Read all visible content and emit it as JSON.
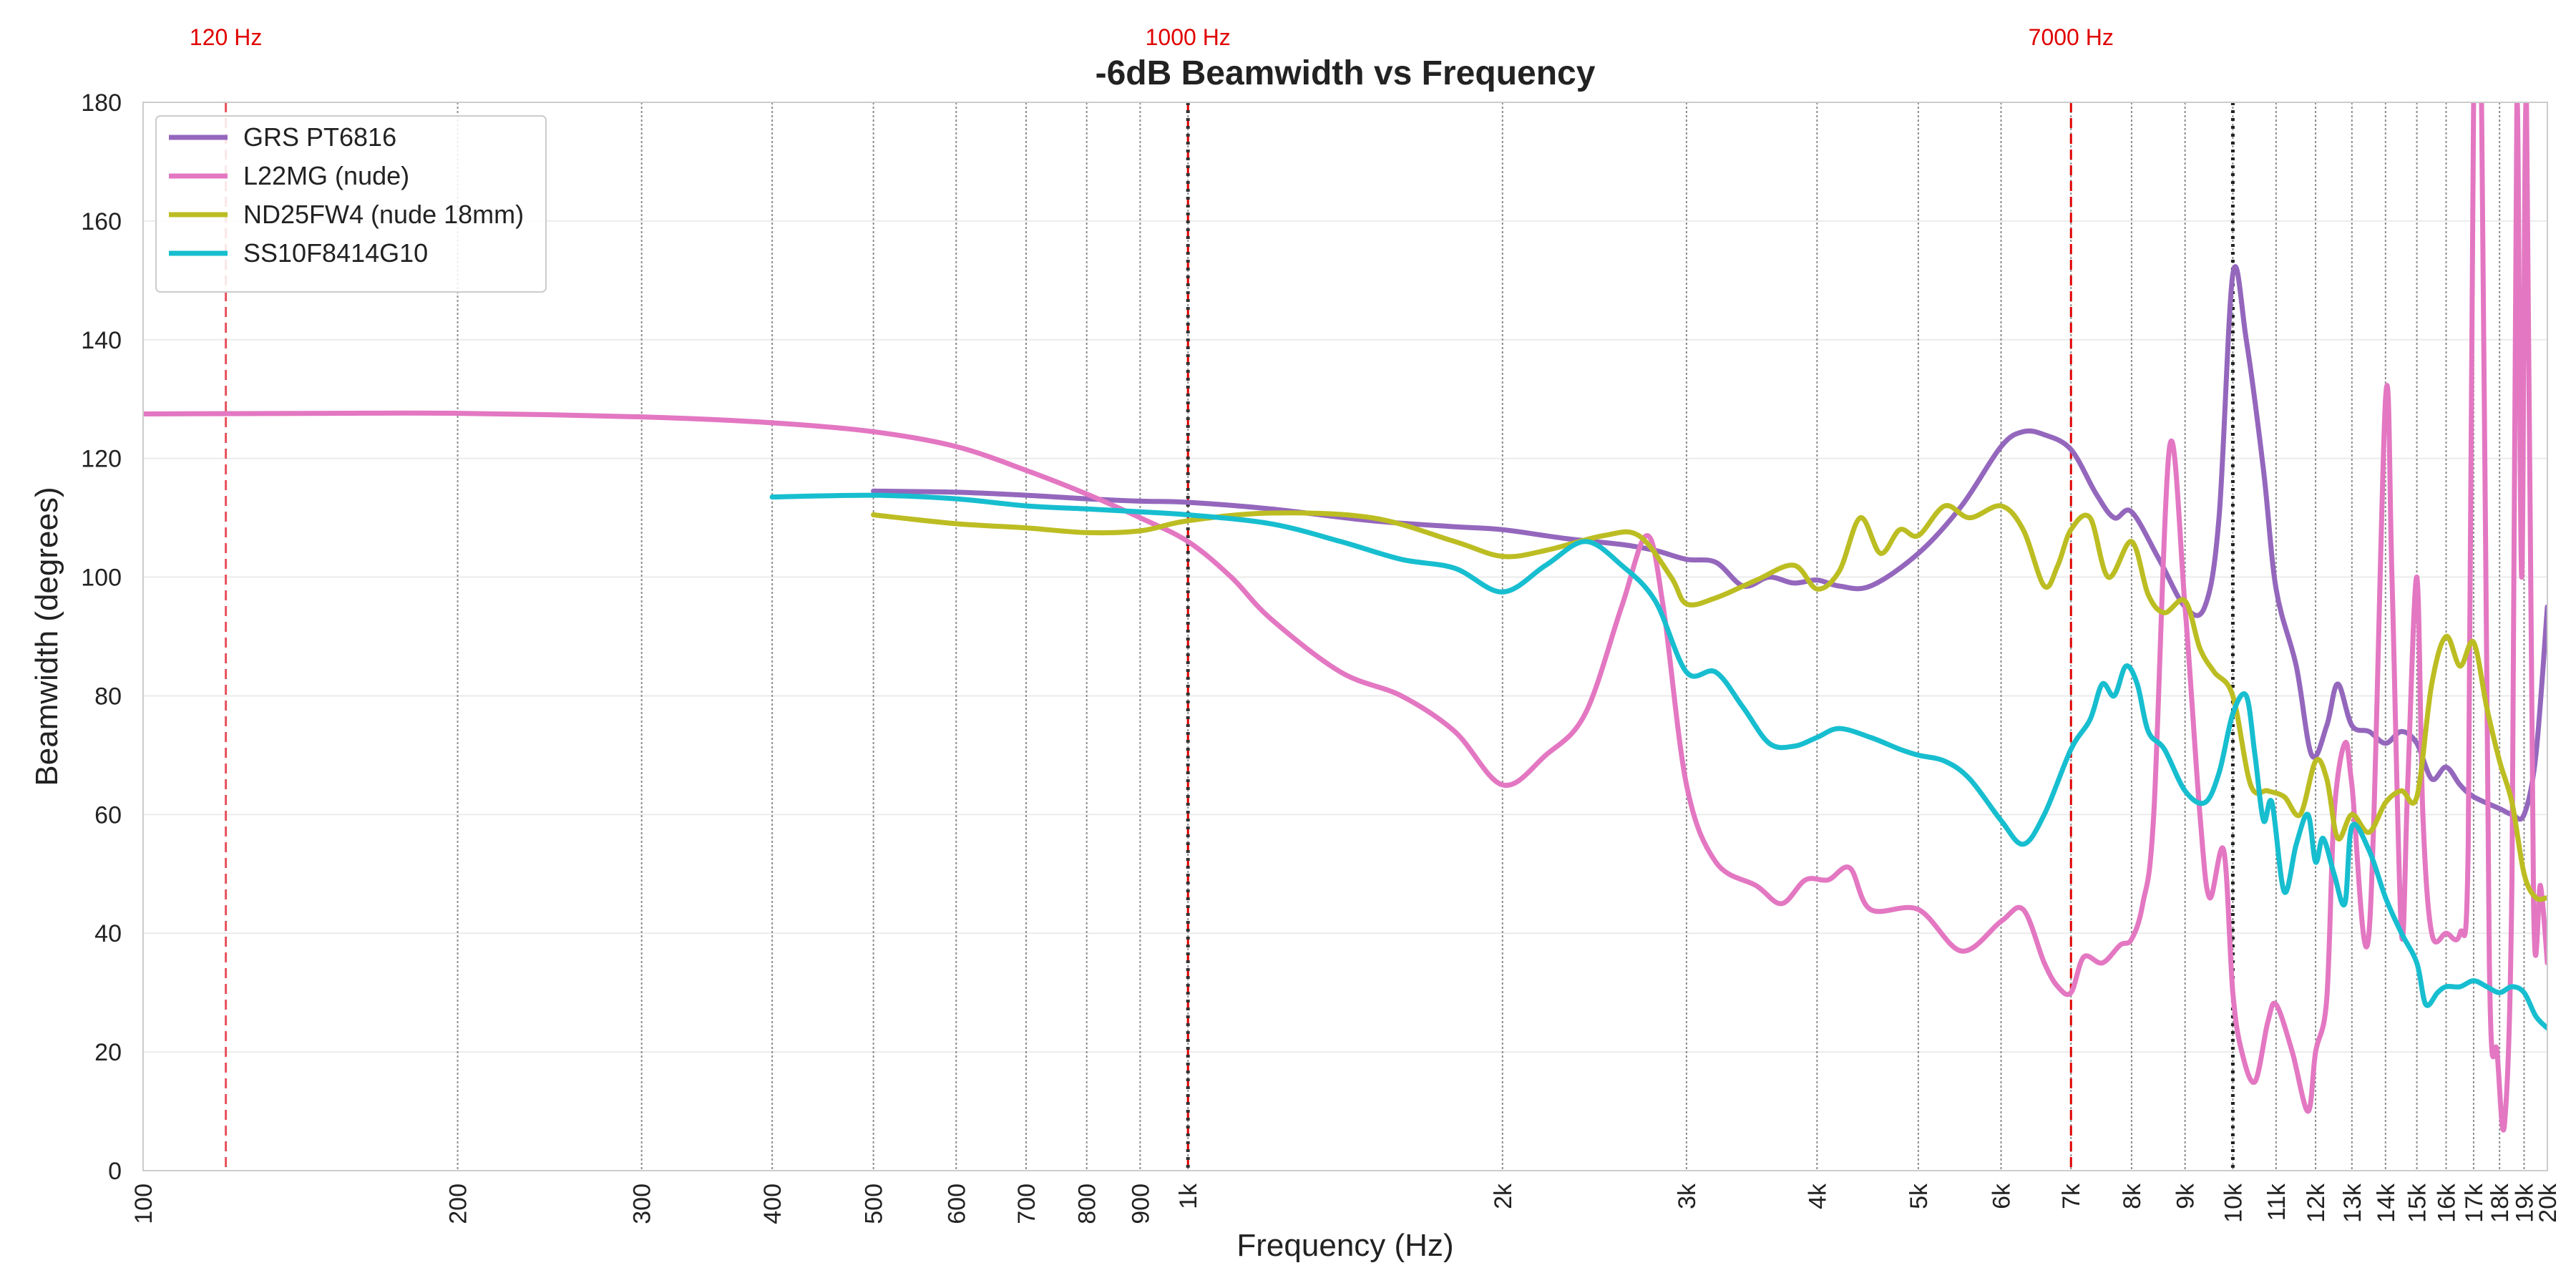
{
  "chart_data": {
    "type": "line",
    "title": "-6dB Beamwidth vs Frequency",
    "xlabel": "Frequency (Hz)",
    "ylabel": "Beamwidth (degrees)",
    "xscale": "log",
    "xlim": [
      100,
      20000
    ],
    "ylim": [
      0,
      180
    ],
    "yticks": [
      0,
      20,
      40,
      60,
      80,
      100,
      120,
      140,
      160,
      180
    ],
    "xticks": [
      {
        "value": 100,
        "label": "100"
      },
      {
        "value": 200,
        "label": "200"
      },
      {
        "value": 300,
        "label": "300"
      },
      {
        "value": 400,
        "label": "400"
      },
      {
        "value": 500,
        "label": "500"
      },
      {
        "value": 600,
        "label": "600"
      },
      {
        "value": 700,
        "label": "700"
      },
      {
        "value": 800,
        "label": "800"
      },
      {
        "value": 900,
        "label": "900"
      },
      {
        "value": 1000,
        "label": "1k"
      },
      {
        "value": 2000,
        "label": "2k"
      },
      {
        "value": 3000,
        "label": "3k"
      },
      {
        "value": 4000,
        "label": "4k"
      },
      {
        "value": 5000,
        "label": "5k"
      },
      {
        "value": 6000,
        "label": "6k"
      },
      {
        "value": 7000,
        "label": "7k"
      },
      {
        "value": 8000,
        "label": "8k"
      },
      {
        "value": 9000,
        "label": "9k"
      },
      {
        "value": 10000,
        "label": "10k"
      },
      {
        "value": 11000,
        "label": "11k"
      },
      {
        "value": 12000,
        "label": "12k"
      },
      {
        "value": 13000,
        "label": "13k"
      },
      {
        "value": 14000,
        "label": "14k"
      },
      {
        "value": 15000,
        "label": "15k"
      },
      {
        "value": 16000,
        "label": "16k"
      },
      {
        "value": 17000,
        "label": "17k"
      },
      {
        "value": 18000,
        "label": "18k"
      },
      {
        "value": 19000,
        "label": "19k"
      },
      {
        "value": 20000,
        "label": "20k"
      }
    ],
    "grid": true,
    "legend_position": "top-left",
    "markers": [
      {
        "x": 120,
        "label": "120 Hz",
        "color": "#e8505b",
        "style": "dashed"
      },
      {
        "x": 1000,
        "label": "1000 Hz",
        "color": "#e00000",
        "style": "dashed"
      },
      {
        "x": 7000,
        "label": "7000 Hz",
        "color": "#e00000",
        "style": "dashed"
      }
    ],
    "dotted_markers": [
      {
        "x": 1000,
        "color": "#333333"
      },
      {
        "x": 10000,
        "color": "#222222"
      }
    ],
    "series": [
      {
        "name": "GRS PT6816",
        "color": "#9467bd",
        "x": [
          500,
          600,
          700,
          800,
          900,
          1000,
          1200,
          1500,
          1800,
          2000,
          2300,
          2600,
          2800,
          3000,
          3200,
          3400,
          3600,
          3800,
          4000,
          4200,
          4500,
          5000,
          5500,
          6000,
          6300,
          6600,
          7000,
          7400,
          7700,
          8000,
          8500,
          9000,
          9400,
          9700,
          10000,
          10300,
          10700,
          11000,
          11500,
          11900,
          12300,
          12600,
          13000,
          13500,
          14000,
          14500,
          15000,
          15500,
          16000,
          16500,
          17000,
          18000,
          18500,
          19000,
          19500,
          20000
        ],
        "values": [
          114.5,
          114.3,
          113.8,
          113.2,
          112.8,
          112.6,
          111.5,
          109.5,
          108.5,
          108.0,
          106.5,
          105.5,
          104.5,
          103.0,
          102.5,
          98.5,
          100.0,
          99.0,
          99.5,
          98.5,
          98.5,
          104.0,
          112.0,
          122.0,
          124.5,
          124.0,
          121.5,
          114.0,
          110.0,
          111.0,
          103.0,
          95.0,
          95.0,
          110.0,
          151.0,
          140.0,
          118.0,
          98.0,
          85.0,
          70.0,
          75.0,
          82.0,
          75.0,
          74.0,
          72.0,
          74.0,
          72.0,
          66.0,
          68.0,
          65.0,
          63.0,
          61.0,
          60.0,
          60.0,
          70.0,
          95.0
        ]
      },
      {
        "name": "L22MG (nude)",
        "color": "#e377c2",
        "x": [
          100,
          150,
          200,
          300,
          400,
          500,
          600,
          700,
          800,
          900,
          1000,
          1100,
          1200,
          1400,
          1600,
          1800,
          2000,
          2200,
          2400,
          2600,
          2750,
          2850,
          3000,
          3200,
          3500,
          3700,
          3900,
          4100,
          4300,
          4500,
          5000,
          5500,
          6000,
          6300,
          6600,
          6800,
          7000,
          7200,
          7500,
          7800,
          8000,
          8200,
          8400,
          8700,
          9000,
          9300,
          9500,
          9800,
          10000,
          10200,
          10500,
          10800,
          11000,
          11400,
          11800,
          12000,
          12300,
          12500,
          12800,
          13000,
          13500,
          14000,
          14200,
          14500,
          14700,
          15000,
          15200,
          15500,
          16000,
          16500,
          16800,
          17000,
          17300,
          17600,
          17900,
          18200,
          18500,
          18700,
          18900,
          19100,
          19400,
          19700,
          20000
        ],
        "values": [
          127.5,
          127.6,
          127.6,
          127.0,
          126.0,
          124.5,
          122.0,
          118.0,
          114.0,
          110.0,
          106.0,
          100.0,
          93.0,
          84.0,
          80.0,
          74.0,
          65.0,
          70.0,
          77.0,
          95.0,
          107.0,
          95.0,
          65.0,
          52.0,
          48.0,
          45.0,
          49.0,
          49.0,
          51.0,
          44.0,
          44.0,
          37.0,
          42.0,
          44.0,
          35.0,
          31.0,
          30.0,
          36.0,
          35.0,
          38.0,
          39.0,
          45.0,
          60.0,
          122.0,
          95.0,
          60.0,
          46.0,
          54.0,
          30.0,
          20.0,
          15.0,
          25.0,
          28.0,
          20.0,
          10.0,
          20.0,
          29.0,
          60.0,
          72.0,
          65.0,
          40.0,
          130.0,
          100.0,
          40.0,
          65.0,
          100.0,
          60.0,
          40.0,
          40.0,
          40.0,
          55.0,
          180.0,
          180.0,
          35.0,
          20.0,
          8.0,
          50.0,
          180.0,
          100.0,
          180.0,
          45.0,
          48.0,
          35.0
        ]
      },
      {
        "name": "ND25FW4 (nude 18mm)",
        "color": "#bcbd22",
        "x": [
          500,
          600,
          700,
          800,
          900,
          1000,
          1200,
          1500,
          1800,
          2000,
          2200,
          2500,
          2700,
          2900,
          3000,
          3200,
          3500,
          3800,
          4000,
          4200,
          4400,
          4600,
          4800,
          5000,
          5300,
          5600,
          6000,
          6300,
          6600,
          6800,
          7000,
          7300,
          7600,
          8000,
          8300,
          8600,
          9000,
          9300,
          9600,
          10000,
          10400,
          10800,
          11200,
          11600,
          12000,
          12300,
          12600,
          13000,
          13500,
          14000,
          14500,
          15000,
          15500,
          16000,
          16500,
          17000,
          17500,
          18000,
          18500,
          19000,
          19500,
          20000
        ],
        "values": [
          110.5,
          109.0,
          108.3,
          107.5,
          107.8,
          109.5,
          110.8,
          110.0,
          106.0,
          103.5,
          104.5,
          107.0,
          107.0,
          100.0,
          95.5,
          96.5,
          99.5,
          102.0,
          98.0,
          101.0,
          110.0,
          104.0,
          108.0,
          107.0,
          112.0,
          110.0,
          112.0,
          108.0,
          98.5,
          102.0,
          108.0,
          110.0,
          100.0,
          106.0,
          97.0,
          94.0,
          96.0,
          88.0,
          84.0,
          80.0,
          65.0,
          64.0,
          63.0,
          60.0,
          69.0,
          66.0,
          56.0,
          60.0,
          57.0,
          62.0,
          64.0,
          63.0,
          82.0,
          90.0,
          85.0,
          89.0,
          78.0,
          69.0,
          62.0,
          50.0,
          46.0,
          46.0
        ]
      },
      {
        "name": "SS10F8414G10",
        "color": "#17becf",
        "x": [
          400,
          500,
          600,
          700,
          800,
          900,
          1000,
          1200,
          1400,
          1600,
          1800,
          2000,
          2200,
          2400,
          2600,
          2800,
          3000,
          3200,
          3400,
          3600,
          3800,
          4000,
          4200,
          4500,
          4800,
          5000,
          5300,
          5600,
          6000,
          6300,
          6600,
          7000,
          7300,
          7500,
          7700,
          7900,
          8100,
          8300,
          8600,
          9000,
          9400,
          9700,
          10000,
          10300,
          10500,
          10700,
          10900,
          11200,
          11500,
          11800,
          12000,
          12200,
          12500,
          12800,
          13000,
          13500,
          14000,
          14500,
          15000,
          15300,
          15700,
          16000,
          16500,
          17000,
          17500,
          18000,
          18500,
          19000,
          19500,
          20000
        ],
        "values": [
          113.5,
          113.8,
          113.2,
          112.0,
          111.5,
          111.0,
          110.5,
          109.0,
          106.0,
          103.0,
          101.5,
          97.5,
          102.0,
          106.0,
          102.0,
          96.0,
          84.0,
          84.0,
          78.0,
          72.0,
          71.5,
          73.0,
          74.5,
          73.0,
          71.0,
          70.0,
          69.0,
          66.0,
          59.0,
          55.0,
          60.0,
          71.0,
          76.0,
          82.0,
          80.0,
          85.0,
          82.0,
          74.0,
          71.0,
          64.0,
          62.0,
          67.0,
          77.0,
          80.0,
          70.0,
          59.0,
          62.0,
          47.0,
          55.0,
          60.0,
          52.0,
          56.0,
          50.0,
          45.0,
          58.0,
          54.0,
          46.0,
          40.0,
          35.0,
          28.0,
          30.0,
          31.0,
          31.0,
          32.0,
          31.0,
          30.0,
          31.0,
          30.0,
          26.0,
          24.0
        ]
      }
    ]
  }
}
